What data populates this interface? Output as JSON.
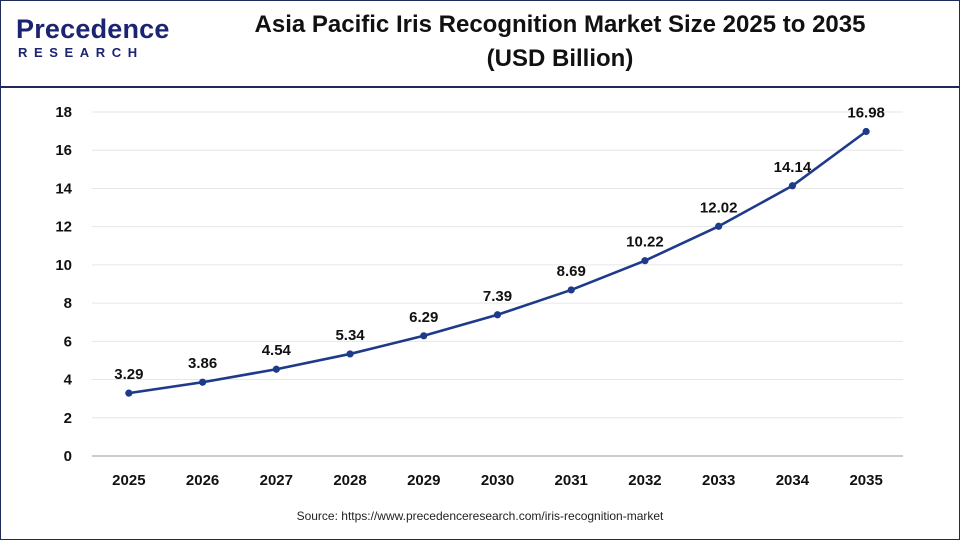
{
  "logo": {
    "word": "Precedence",
    "sub": "RESEARCH"
  },
  "title_line1": "Asia Pacific Iris Recognition Market Size 2025 to 2035",
  "title_line2": "(USD Billion)",
  "source": "Source: https://www.precedenceresearch.com/iris-recognition-market",
  "colors": {
    "line": "#1e3a8a",
    "marker": "#1e3a8a",
    "border": "#1e2a5a"
  },
  "chart_data": {
    "type": "line",
    "title": "Asia Pacific Iris Recognition Market Size 2025 to 2035 (USD Billion)",
    "xlabel": "",
    "ylabel": "",
    "categories": [
      "2025",
      "2026",
      "2027",
      "2028",
      "2029",
      "2030",
      "2031",
      "2032",
      "2033",
      "2034",
      "2035"
    ],
    "series": [
      {
        "values": [
          3.29,
          3.86,
          4.54,
          5.34,
          6.29,
          7.39,
          8.69,
          10.22,
          12.02,
          14.14,
          16.98
        ]
      }
    ],
    "data_labels": [
      "3.29",
      "3.86",
      "4.54",
      "5.34",
      "6.29",
      "7.39",
      "8.69",
      "10.22",
      "12.02",
      "14.14",
      "16.98"
    ],
    "ylim": [
      0,
      18
    ],
    "yticks": [
      "0",
      "2",
      "4",
      "6",
      "8",
      "10",
      "12",
      "14",
      "16",
      "18"
    ],
    "grid": true,
    "legend": "none"
  }
}
